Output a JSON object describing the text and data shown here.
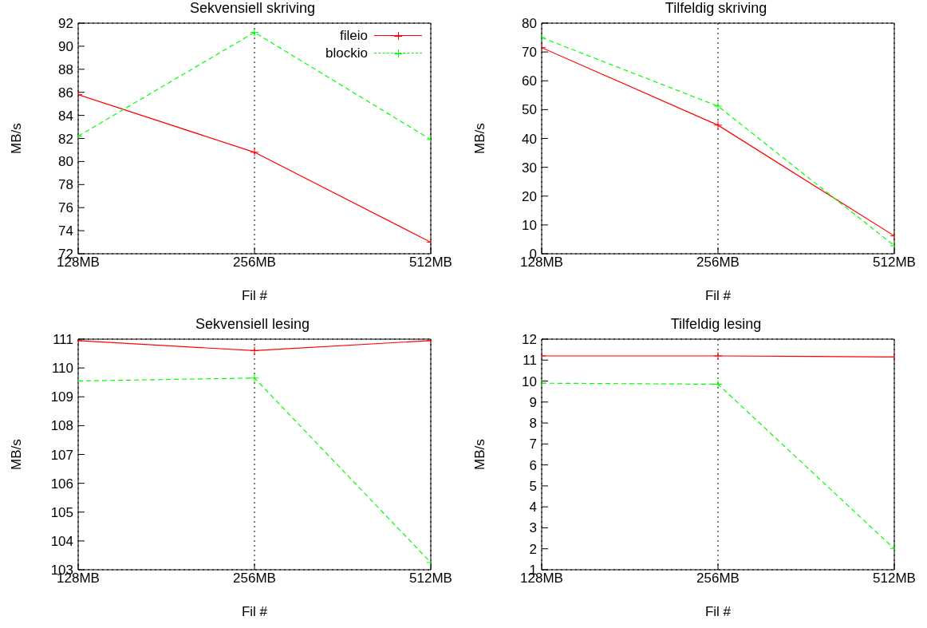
{
  "chart_data": [
    {
      "type": "line",
      "title": "Sekvensiell skriving",
      "xlabel": "Fil #",
      "ylabel": "MB/s",
      "categories": [
        "128MB",
        "256MB",
        "512MB"
      ],
      "ylim": [
        72,
        92
      ],
      "yticks": [
        72,
        74,
        76,
        78,
        80,
        82,
        84,
        86,
        88,
        90,
        92
      ],
      "grid": true,
      "legend": "top right",
      "series": [
        {
          "name": "fileio",
          "color": "#ff0000",
          "values": [
            85.8,
            80.8,
            73.0
          ],
          "marker": "cross",
          "line_style": "solid"
        },
        {
          "name": "blockio",
          "color": "#00ff00",
          "values": [
            82.2,
            91.2,
            81.9
          ],
          "marker": "cross",
          "line_style": "dashed"
        }
      ]
    },
    {
      "type": "line",
      "title": "Tilfeldig skriving",
      "xlabel": "Fil #",
      "ylabel": "MB/s",
      "categories": [
        "128MB",
        "256MB",
        "512MB"
      ],
      "ylim": [
        0,
        80
      ],
      "yticks": [
        0,
        10,
        20,
        30,
        40,
        50,
        60,
        70,
        80
      ],
      "grid": true,
      "series": [
        {
          "color": "#ff0000",
          "values": [
            71.5,
            44.6,
            6.2
          ],
          "marker": "cross",
          "line_style": "solid"
        },
        {
          "color": "#00ff00",
          "values": [
            75.0,
            51.2,
            2.8
          ],
          "marker": "cross",
          "line_style": "dashed"
        }
      ]
    },
    {
      "type": "line",
      "title": "Sekvensiell lesing",
      "xlabel": "Fil #",
      "ylabel": "MB/s",
      "categories": [
        "128MB",
        "256MB",
        "512MB"
      ],
      "ylim": [
        103,
        111
      ],
      "yticks": [
        103,
        104,
        105,
        106,
        107,
        108,
        109,
        110,
        111
      ],
      "grid": true,
      "series": [
        {
          "color": "#ff0000",
          "values": [
            110.95,
            110.6,
            110.95
          ],
          "marker": "cross",
          "line_style": "solid"
        },
        {
          "color": "#00ff00",
          "values": [
            109.55,
            109.65,
            103.25
          ],
          "marker": "cross",
          "line_style": "dashed"
        }
      ]
    },
    {
      "type": "line",
      "title": "Tilfeldig lesing",
      "xlabel": "Fil #",
      "ylabel": "MB/s",
      "categories": [
        "128MB",
        "256MB",
        "512MB"
      ],
      "ylim": [
        1,
        12
      ],
      "yticks": [
        1,
        2,
        3,
        4,
        5,
        6,
        7,
        8,
        9,
        10,
        11,
        12
      ],
      "grid": true,
      "series": [
        {
          "color": "#ff0000",
          "values": [
            11.2,
            11.2,
            11.15
          ],
          "marker": "cross",
          "line_style": "solid"
        },
        {
          "color": "#00ff00",
          "values": [
            9.9,
            9.85,
            2.0
          ],
          "marker": "cross",
          "line_style": "dashed"
        }
      ]
    }
  ]
}
